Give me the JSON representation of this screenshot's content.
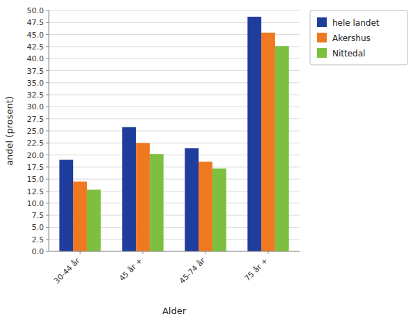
{
  "chart_data": {
    "type": "bar",
    "categories": [
      "30-44 år",
      "45 år +",
      "45-74 år",
      "75 år +"
    ],
    "series": [
      {
        "name": "hele landet",
        "color": "#1f3d9c",
        "values": [
          19.0,
          25.8,
          21.4,
          48.7
        ]
      },
      {
        "name": "Akershus",
        "color": "#f07820",
        "values": [
          14.5,
          22.5,
          18.6,
          45.4
        ]
      },
      {
        "name": "Nittedal",
        "color": "#7dc040",
        "values": [
          12.8,
          20.2,
          17.2,
          42.6
        ]
      }
    ],
    "xlabel": "Alder",
    "ylabel": "andel (prosent)",
    "ylim": [
      0,
      50
    ],
    "yticks": [
      {
        "value": 0,
        "label": "0.0"
      },
      2.5,
      {
        "value": 5,
        "label": "5.0"
      },
      7.5,
      {
        "value": 10,
        "label": "10.0"
      },
      12.5,
      {
        "value": 15,
        "label": "15.0"
      },
      17.5,
      {
        "value": 20,
        "label": "20.0"
      },
      22.5,
      {
        "value": 25,
        "label": "25.0"
      },
      27.5,
      {
        "value": 30,
        "label": "30.0"
      },
      32.5,
      {
        "value": 35,
        "label": "35.0"
      },
      37.5,
      {
        "value": 40,
        "label": "40.0"
      },
      42.5,
      {
        "value": 45,
        "label": "45.0"
      },
      47.5,
      {
        "value": 50,
        "label": "50.0"
      }
    ],
    "grid": true,
    "legend": "right"
  }
}
